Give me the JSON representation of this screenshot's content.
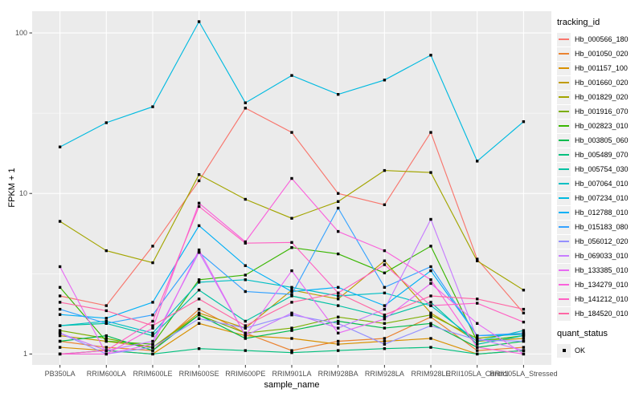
{
  "y_axis": {
    "title": "FPKM + 1",
    "ticks": [
      {
        "label": "100",
        "value": 100
      },
      {
        "label": "10",
        "value": 10
      },
      {
        "label": "1",
        "value": 1
      }
    ]
  },
  "x_axis": {
    "title": "sample_name"
  },
  "legend": {
    "tracking_title": "tracking_id",
    "quant_title": "quant_status",
    "quant_ok_label": "OK"
  },
  "colors": {
    "panel_bg": "#EBEBEB",
    "gridline": "#FFFFFF",
    "axis_text": "#4D4D4D",
    "tick_mark": "#333333",
    "marker": "#000000",
    "legend_key_bg": "#EFEFEF"
  },
  "chart_data": {
    "type": "line",
    "yscale": "log10",
    "ylim": [
      0.855,
      136.5
    ],
    "ylabel": "FPKM + 1",
    "xlabel": "sample_name",
    "grid": "on",
    "legend_position": "right",
    "marker": "black-square",
    "major_gridlines": [
      1,
      10,
      100
    ],
    "minor_gridlines": [
      3.162,
      31.62
    ],
    "categories": [
      "PB350LA",
      "RRIM600LA",
      "RRIM600LE",
      "RRIM600SE",
      "RRIM600PE",
      "RRIM901LA",
      "RRIM928BA",
      "RRIM928LA",
      "RRIM928LE",
      "RRII105LA_Control",
      "RRII105LA_Stressed"
    ],
    "series": [
      {
        "name": "Hb_000566_180",
        "color": "#F8766D",
        "values": [
          2.3,
          2.0,
          4.7,
          12.0,
          34.0,
          24.0,
          10.0,
          8.5,
          24.0,
          3.9,
          1.8
        ]
      },
      {
        "name": "Hb_001050_020",
        "color": "#EA8331",
        "values": [
          1.2,
          1.1,
          1.05,
          1.9,
          1.35,
          1.05,
          1.2,
          1.25,
          1.7,
          1.05,
          1.1
        ]
      },
      {
        "name": "Hb_001157_100",
        "color": "#D89000",
        "values": [
          1.1,
          1.05,
          1.0,
          1.55,
          1.3,
          1.25,
          1.15,
          1.2,
          1.25,
          1.0,
          1.05
        ]
      },
      {
        "name": "Hb_001660_020",
        "color": "#C09B00",
        "values": [
          1.3,
          1.2,
          1.1,
          1.8,
          1.45,
          2.5,
          2.2,
          3.8,
          1.8,
          1.2,
          1.25
        ]
      },
      {
        "name": "Hb_001829_020",
        "color": "#A3A500",
        "values": [
          6.7,
          4.4,
          3.7,
          13.1,
          9.2,
          7.0,
          8.9,
          13.9,
          13.5,
          3.8,
          2.5
        ]
      },
      {
        "name": "Hb_001916_070",
        "color": "#7CAE00",
        "values": [
          1.4,
          1.25,
          1.1,
          1.75,
          1.35,
          1.45,
          1.7,
          1.55,
          1.75,
          1.25,
          1.35
        ]
      },
      {
        "name": "Hb_002823_010",
        "color": "#39B600",
        "values": [
          2.6,
          1.2,
          1.15,
          2.9,
          3.1,
          4.6,
          4.2,
          3.2,
          4.7,
          1.2,
          1.3
        ]
      },
      {
        "name": "Hb_003805_060",
        "color": "#00BB4E",
        "values": [
          1.2,
          1.3,
          1.05,
          1.75,
          1.25,
          1.4,
          1.6,
          1.45,
          1.55,
          1.1,
          1.2
        ]
      },
      {
        "name": "Hb_005489_070",
        "color": "#00BF7D",
        "values": [
          1.0,
          1.05,
          1.0,
          1.08,
          1.05,
          1.02,
          1.05,
          1.08,
          1.1,
          1.0,
          1.05
        ]
      },
      {
        "name": "Hb_005754_030",
        "color": "#00C1A3",
        "values": [
          1.5,
          1.55,
          1.3,
          2.5,
          1.6,
          2.3,
          2.0,
          1.7,
          2.1,
          1.15,
          1.3
        ]
      },
      {
        "name": "Hb_007064_010",
        "color": "#00BFC4",
        "values": [
          1.5,
          1.6,
          1.35,
          2.8,
          2.9,
          2.6,
          2.3,
          2.4,
          2.0,
          1.2,
          1.4
        ]
      },
      {
        "name": "Hb_007234_010",
        "color": "#00BAE0",
        "values": [
          19.5,
          27.6,
          34.7,
          117.5,
          36.7,
          54.3,
          41.4,
          50.9,
          72.7,
          15.9,
          28.0
        ]
      },
      {
        "name": "Hb_012788_010",
        "color": "#00B0F6",
        "values": [
          1.76,
          1.67,
          2.1,
          6.3,
          3.55,
          2.45,
          2.6,
          2.0,
          3.3,
          1.3,
          1.32
        ]
      },
      {
        "name": "Hb_015183_080",
        "color": "#35A2FF",
        "values": [
          1.9,
          1.55,
          1.75,
          4.3,
          2.45,
          2.35,
          8.1,
          2.6,
          3.5,
          1.3,
          1.35
        ]
      },
      {
        "name": "Hb_056012_020",
        "color": "#9590FF",
        "values": [
          1.35,
          1.0,
          1.1,
          1.66,
          1.45,
          1.75,
          1.55,
          1.15,
          1.5,
          1.22,
          1.2
        ]
      },
      {
        "name": "Hb_069033_010",
        "color": "#C77CFF",
        "values": [
          1.35,
          1.05,
          1.2,
          4.3,
          1.3,
          1.8,
          1.45,
          1.9,
          6.9,
          1.25,
          1.05
        ]
      },
      {
        "name": "Hb_133385_010",
        "color": "#E76BF3",
        "values": [
          3.5,
          1.0,
          1.15,
          4.45,
          1.3,
          3.3,
          1.35,
          1.65,
          2.75,
          1.55,
          1.0
        ]
      },
      {
        "name": "Hb_134279_010",
        "color": "#FA62DB",
        "values": [
          1.0,
          1.0,
          1.45,
          8.7,
          5.0,
          12.4,
          5.8,
          4.4,
          2.9,
          1.1,
          1.0
        ]
      },
      {
        "name": "Hb_141212_010",
        "color": "#FF61C3",
        "values": [
          1.0,
          1.05,
          1.6,
          8.3,
          4.9,
          4.95,
          2.4,
          3.6,
          2.0,
          2.07,
          1.58
        ]
      },
      {
        "name": "Hb_184520_010",
        "color": "#FF67A4",
        "values": [
          2.1,
          1.86,
          1.5,
          2.2,
          1.5,
          2.1,
          2.4,
          1.75,
          2.3,
          2.2,
          1.9
        ]
      }
    ]
  }
}
